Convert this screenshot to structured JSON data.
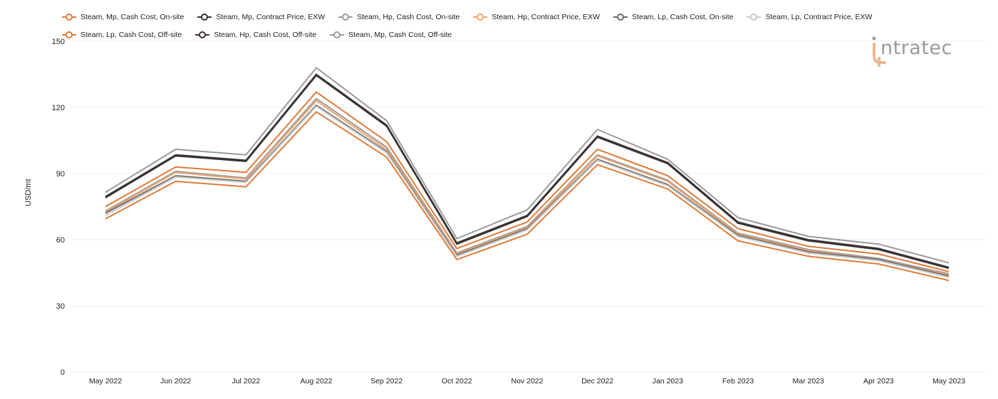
{
  "logo": {
    "text": "ntratec"
  },
  "colors": {
    "orange": "#e07b39",
    "dark": "#3a3330",
    "gray": "#9b9b9b",
    "lightorange": "#f2a46b",
    "midgray": "#6e6e6e",
    "lightgray": "#c8c8c8"
  },
  "chart_data": {
    "type": "line",
    "title": "",
    "xlabel": "",
    "ylabel": "USD/mt",
    "ylim": [
      0,
      150
    ],
    "yticks": [
      0,
      30,
      60,
      90,
      120,
      150
    ],
    "grid": true,
    "legend_position": "top",
    "categories": [
      "May 2022",
      "Jun 2022",
      "Jul 2022",
      "Aug 2022",
      "Sep 2022",
      "Oct 2022",
      "Nov 2022",
      "Dec 2022",
      "Jan 2023",
      "Feb 2023",
      "Mar 2023",
      "Apr 2023",
      "May 2023"
    ],
    "series": [
      {
        "name": "Steam, Mp, Cash Cost, On-site",
        "color": "#e07b39",
        "values": [
          75.0,
          93.0,
          90.5,
          127.0,
          104.5,
          56.0,
          68.0,
          101.0,
          89.0,
          65.0,
          57.0,
          53.5,
          45.5
        ]
      },
      {
        "name": "Steam, Mp, Contract Price, EXW",
        "color": "#3a3330",
        "values": [
          79.5,
          98.5,
          96.0,
          135.0,
          112.0,
          58.5,
          71.0,
          107.0,
          95.0,
          68.0,
          60.0,
          56.0,
          47.5
        ]
      },
      {
        "name": "Steam, Hp, Cash Cost, On-site",
        "color": "#9b9b9b",
        "values": [
          73.0,
          91.0,
          88.0,
          124.0,
          102.0,
          54.0,
          66.0,
          98.5,
          87.0,
          63.0,
          55.5,
          51.5,
          44.5
        ]
      },
      {
        "name": "Steam, Hp, Contract Price, EXW",
        "color": "#f2a46b",
        "values": [
          72.5,
          90.5,
          87.5,
          123.0,
          101.0,
          53.5,
          65.5,
          98.0,
          86.5,
          62.5,
          55.0,
          51.0,
          44.0
        ]
      },
      {
        "name": "Steam, Lp, Cash Cost, On-site",
        "color": "#6e6e6e",
        "values": [
          72.0,
          89.0,
          86.5,
          121.0,
          100.0,
          53.0,
          65.0,
          96.5,
          85.0,
          62.0,
          54.5,
          51.0,
          43.5
        ]
      },
      {
        "name": "Steam, Lp, Contract Price, EXW",
        "color": "#c8c8c8",
        "values": [
          71.0,
          88.5,
          86.0,
          120.5,
          99.5,
          52.5,
          64.5,
          96.0,
          84.5,
          61.5,
          54.0,
          50.5,
          43.0
        ]
      },
      {
        "name": "Steam, Lp, Cash Cost, Off-site",
        "color": "#e07b39",
        "values": [
          69.5,
          86.5,
          84.0,
          118.0,
          97.5,
          51.0,
          62.5,
          94.0,
          83.0,
          59.5,
          52.5,
          49.0,
          41.5
        ]
      },
      {
        "name": "Steam, Hp, Cash Cost, Off-site",
        "color": "#3a3330",
        "values": [
          79.0,
          98.0,
          95.5,
          134.5,
          111.5,
          58.0,
          70.5,
          106.5,
          94.5,
          67.5,
          59.5,
          55.5,
          47.0
        ]
      },
      {
        "name": "Steam, Mp, Cash Cost, Off-site",
        "color": "#9b9b9b",
        "values": [
          81.5,
          101.0,
          98.5,
          138.0,
          114.0,
          60.5,
          73.5,
          110.0,
          96.5,
          70.0,
          61.5,
          58.0,
          49.5
        ]
      }
    ]
  }
}
